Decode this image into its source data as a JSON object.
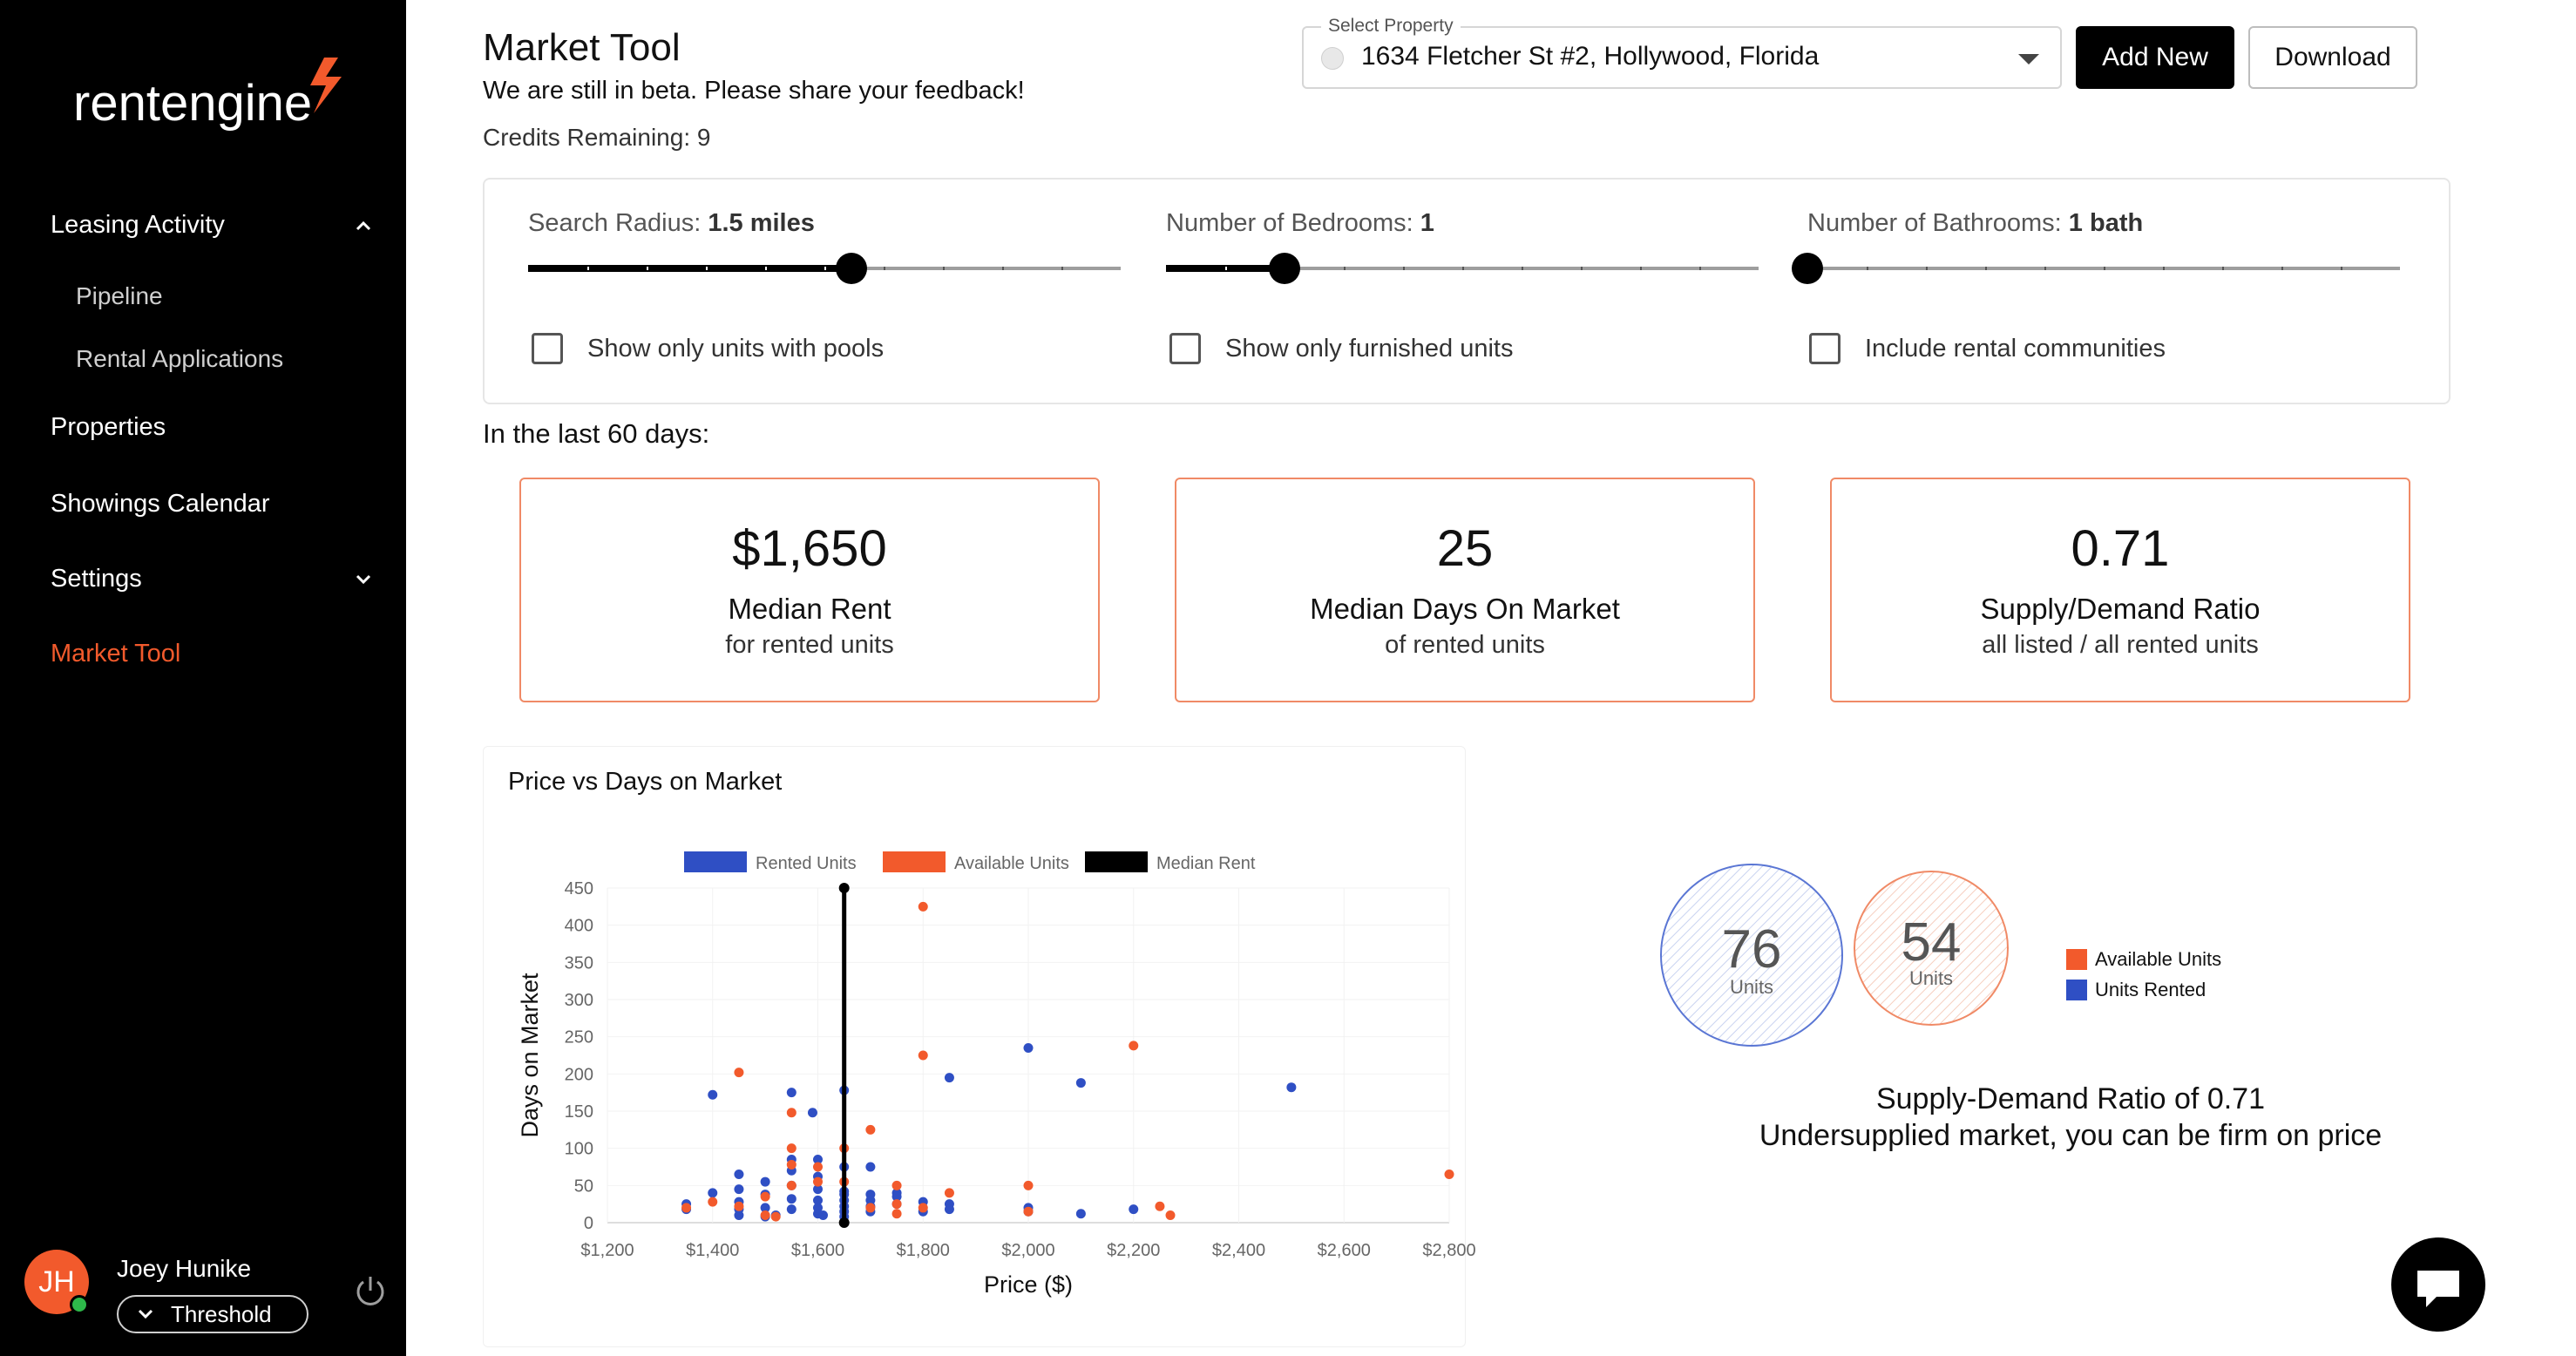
{
  "brand": {
    "logo_text": "rentengine",
    "accent": "#f25a2c"
  },
  "sidebar": {
    "items": [
      {
        "label": "Leasing Activity",
        "icon": "chevron-up-icon"
      },
      {
        "label": "Pipeline"
      },
      {
        "label": "Rental Applications"
      },
      {
        "label": "Properties"
      },
      {
        "label": "Showings Calendar"
      },
      {
        "label": "Settings",
        "icon": "chevron-down-icon"
      },
      {
        "label": "Market Tool",
        "active": true
      }
    ],
    "user": {
      "initials": "JH",
      "name": "Joey Hunike",
      "org": "Threshold"
    }
  },
  "header": {
    "title": "Market Tool",
    "subtitle": "We are still in beta. Please share your feedback!",
    "credits": "Credits Remaining: 9",
    "select_label": "Select Property",
    "select_value": "1634 Fletcher St #2, Hollywood, Florida",
    "add_new": "Add New",
    "download": "Download"
  },
  "filters": {
    "radius": {
      "label": "Search Radius: ",
      "value": "1.5 miles",
      "level": 0.545
    },
    "bedrooms": {
      "label": "Number of Bedrooms: ",
      "value": "1",
      "level": 0.2
    },
    "bathrooms": {
      "label": "Number of Bathrooms: ",
      "value": "1 bath",
      "level": 0.0
    },
    "pools": "Show only units with pools",
    "furnished": "Show only furnished units",
    "communities": "Include rental communities"
  },
  "period": "In the last 60 days:",
  "stats": [
    {
      "value": "$1,650",
      "title": "Median Rent",
      "sub": "for rented units"
    },
    {
      "value": "25",
      "title": "Median Days On Market",
      "sub": "of rented units"
    },
    {
      "value": "0.71",
      "title": "Supply/Demand Ratio",
      "sub": "all listed / all rented units"
    }
  ],
  "chart_title": "Price vs Days on Market",
  "chart_data": {
    "type": "scatter",
    "xlabel": "Price ($)",
    "ylabel": "Days on Market",
    "xlim": [
      1200,
      2800
    ],
    "ylim": [
      0,
      450
    ],
    "x_ticks": [
      "$1,200",
      "$1,400",
      "$1,600",
      "$1,800",
      "$2,000",
      "$2,200",
      "$2,400",
      "$2,600",
      "$2,800"
    ],
    "y_ticks": [
      "0",
      "50",
      "100",
      "150",
      "200",
      "250",
      "300",
      "350",
      "400",
      "450"
    ],
    "median_rent": 1650,
    "legend": [
      "Rented Units",
      "Available Units",
      "Median Rent"
    ],
    "colors": {
      "rented": "#2f4fc4",
      "available": "#f25a2c",
      "median": "#000000"
    },
    "series": [
      {
        "name": "Rented Units",
        "points": [
          [
            1350,
            25
          ],
          [
            1350,
            18
          ],
          [
            1400,
            40
          ],
          [
            1400,
            172
          ],
          [
            1450,
            65
          ],
          [
            1450,
            45
          ],
          [
            1450,
            28
          ],
          [
            1450,
            18
          ],
          [
            1450,
            10
          ],
          [
            1500,
            55
          ],
          [
            1500,
            38
          ],
          [
            1500,
            20
          ],
          [
            1500,
            8
          ],
          [
            1520,
            10
          ],
          [
            1550,
            175
          ],
          [
            1550,
            85
          ],
          [
            1550,
            70
          ],
          [
            1550,
            50
          ],
          [
            1550,
            32
          ],
          [
            1550,
            18
          ],
          [
            1590,
            148
          ],
          [
            1600,
            85
          ],
          [
            1600,
            62
          ],
          [
            1600,
            45
          ],
          [
            1600,
            30
          ],
          [
            1600,
            20
          ],
          [
            1600,
            12
          ],
          [
            1610,
            10
          ],
          [
            1650,
            178
          ],
          [
            1650,
            75
          ],
          [
            1650,
            42
          ],
          [
            1650,
            38
          ],
          [
            1650,
            30
          ],
          [
            1650,
            22
          ],
          [
            1650,
            15
          ],
          [
            1650,
            8
          ],
          [
            1700,
            75
          ],
          [
            1700,
            38
          ],
          [
            1700,
            30
          ],
          [
            1700,
            22
          ],
          [
            1700,
            15
          ],
          [
            1750,
            40
          ],
          [
            1750,
            35
          ],
          [
            1750,
            25
          ],
          [
            1800,
            28
          ],
          [
            1800,
            15
          ],
          [
            1850,
            195
          ],
          [
            1850,
            25
          ],
          [
            1850,
            18
          ],
          [
            2000,
            235
          ],
          [
            2000,
            20
          ],
          [
            2000,
            15
          ],
          [
            2100,
            188
          ],
          [
            2100,
            12
          ],
          [
            2200,
            18
          ],
          [
            2500,
            182
          ]
        ]
      },
      {
        "name": "Available Units",
        "points": [
          [
            1350,
            20
          ],
          [
            1400,
            28
          ],
          [
            1450,
            202
          ],
          [
            1450,
            22
          ],
          [
            1500,
            35
          ],
          [
            1500,
            10
          ],
          [
            1520,
            8
          ],
          [
            1550,
            148
          ],
          [
            1550,
            100
          ],
          [
            1550,
            78
          ],
          [
            1550,
            50
          ],
          [
            1600,
            75
          ],
          [
            1600,
            55
          ],
          [
            1650,
            100
          ],
          [
            1650,
            55
          ],
          [
            1700,
            125
          ],
          [
            1700,
            20
          ],
          [
            1750,
            50
          ],
          [
            1750,
            25
          ],
          [
            1750,
            12
          ],
          [
            1800,
            425
          ],
          [
            1800,
            225
          ],
          [
            1800,
            20
          ],
          [
            1850,
            40
          ],
          [
            2000,
            50
          ],
          [
            2000,
            15
          ],
          [
            2200,
            238
          ],
          [
            2250,
            22
          ],
          [
            2270,
            10
          ],
          [
            2800,
            65
          ]
        ]
      }
    ]
  },
  "bubbles": {
    "rented": {
      "value": "76",
      "unit": "Units"
    },
    "available": {
      "value": "54",
      "unit": "Units"
    },
    "legend_available": "Available Units",
    "legend_rented": "Units Rented"
  },
  "ratio": {
    "line1": "Supply-Demand Ratio of 0.71",
    "line2": "Undersupplied market, you can be firm on price"
  }
}
